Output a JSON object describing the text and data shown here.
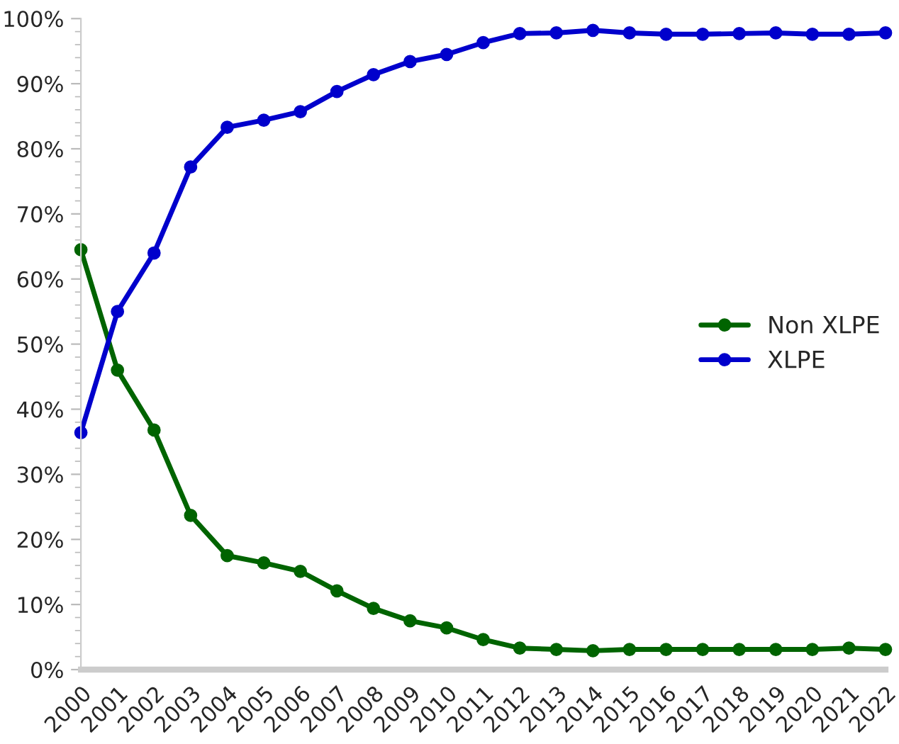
{
  "chart_data": {
    "type": "line",
    "categories": [
      "2000",
      "2001",
      "2002",
      "2003",
      "2004",
      "2005",
      "2006",
      "2007",
      "2008",
      "2009",
      "2010",
      "2011",
      "2012",
      "2013",
      "2014",
      "2015",
      "2016",
      "2017",
      "2018",
      "2019",
      "2020",
      "2021",
      "2022"
    ],
    "series": [
      {
        "name": "Non XLPE",
        "color": "#006400",
        "values": [
          64.5,
          46,
          36.8,
          23.7,
          17.5,
          16.4,
          15.1,
          12.1,
          9.4,
          7.5,
          6.4,
          4.6,
          3.3,
          3.1,
          2.9,
          3.1,
          3.1,
          3.1,
          3.1,
          3.1,
          3.1,
          3.3,
          3.1
        ]
      },
      {
        "name": "XLPE",
        "color": "#0000cc",
        "values": [
          36.4,
          55,
          64,
          77.2,
          83.3,
          84.4,
          85.7,
          88.8,
          91.4,
          93.4,
          94.5,
          96.3,
          97.7,
          97.8,
          98.2,
          97.8,
          97.6,
          97.6,
          97.7,
          97.8,
          97.6,
          97.6,
          97.8
        ]
      }
    ],
    "ylim": [
      0,
      100
    ],
    "yticks": [
      {
        "value": 0,
        "label": "0%"
      },
      {
        "value": 10,
        "label": "10%"
      },
      {
        "value": 20,
        "label": "20%"
      },
      {
        "value": 30,
        "label": "30%"
      },
      {
        "value": 40,
        "label": "40%"
      },
      {
        "value": 50,
        "label": "50%"
      },
      {
        "value": 60,
        "label": "60%"
      },
      {
        "value": 70,
        "label": "70%"
      },
      {
        "value": 80,
        "label": "80%"
      },
      {
        "value": 90,
        "label": "90%"
      },
      {
        "value": 100,
        "label": "100%"
      }
    ],
    "grid": false,
    "legend": "right",
    "marker": "circle",
    "line_style": "solid"
  }
}
